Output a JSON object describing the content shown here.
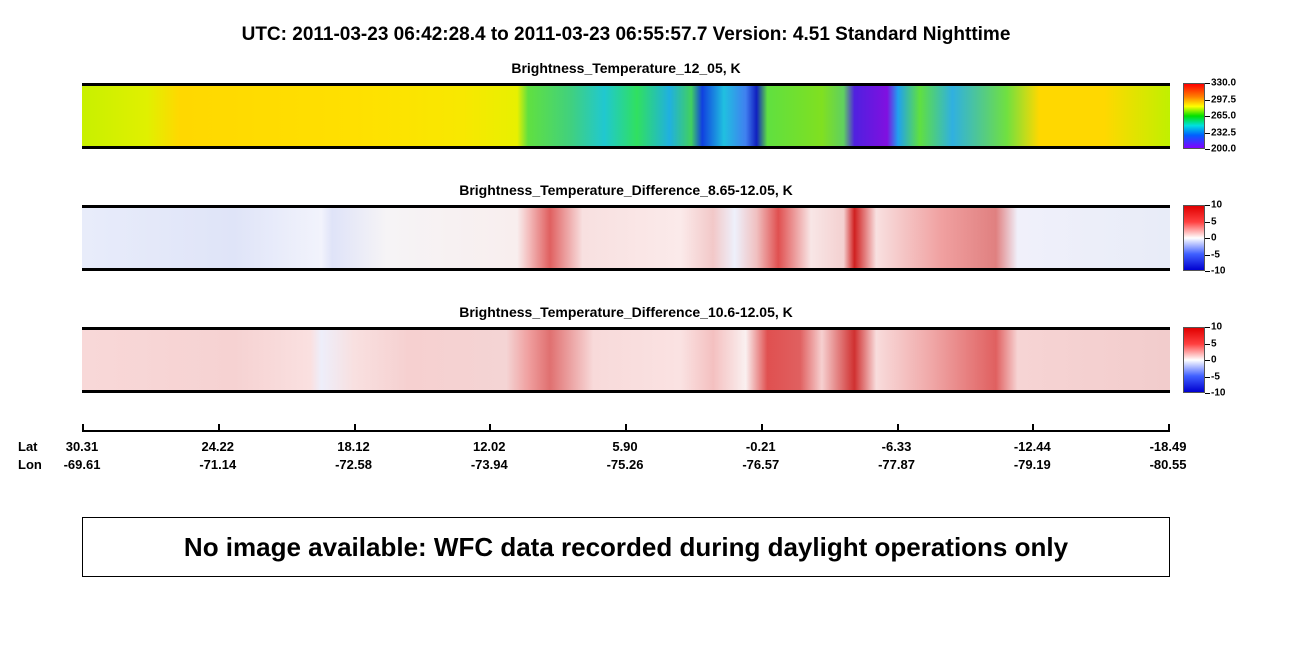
{
  "header": {
    "title": "UTC:  2011-03-23   06:42:28.4  to  2011-03-23   06:55:57.7    Version: 4.51  Standard Nighttime"
  },
  "panels": [
    {
      "title": "Brightness_Temperature_12_05, K",
      "colorbar_labels": [
        "330.0",
        "297.5",
        "265.0",
        "232.5",
        "200.0"
      ]
    },
    {
      "title": "Brightness_Temperature_Difference_8.65-12.05, K",
      "colorbar_labels": [
        "10",
        "5",
        "0",
        "-5",
        "-10"
      ]
    },
    {
      "title": "Brightness_Temperature_Difference_10.6-12.05, K",
      "colorbar_labels": [
        "10",
        "5",
        "0",
        "-5",
        "-10"
      ]
    }
  ],
  "track_axis": {
    "lat_heading": "Lat",
    "lon_heading": "Lon",
    "lat": [
      "30.31",
      "24.22",
      "18.12",
      "12.02",
      "5.90",
      "-0.21",
      "-6.33",
      "-12.44",
      "-18.49"
    ],
    "lon": [
      "-69.61",
      "-71.14",
      "-72.58",
      "-73.94",
      "-75.26",
      "-76.57",
      "-77.87",
      "-79.19",
      "-80.55"
    ]
  },
  "message": "No image available: WFC data recorded during daylight operations only"
}
